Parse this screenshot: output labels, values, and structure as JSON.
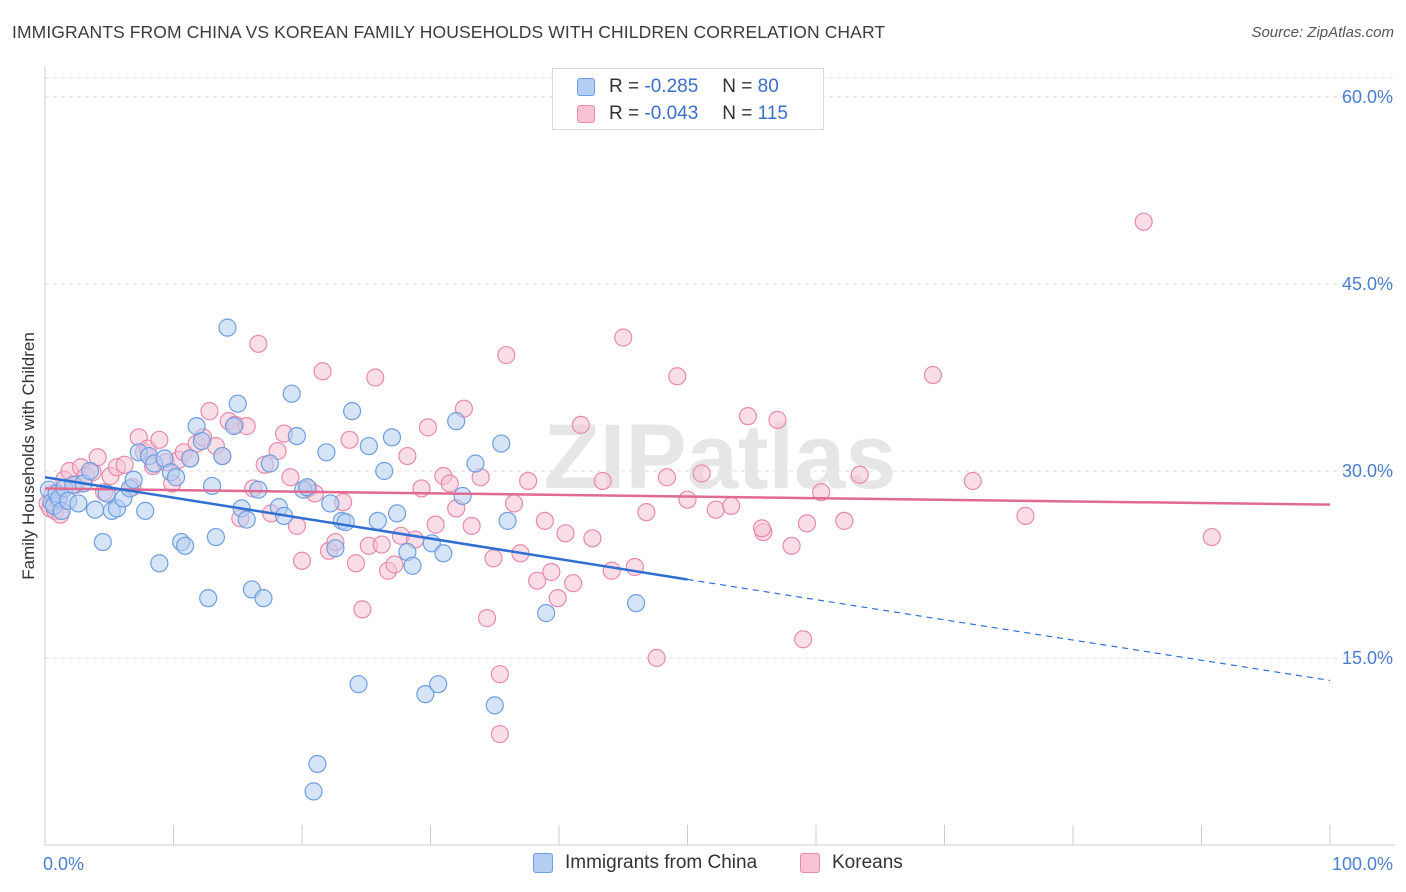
{
  "title": "IMMIGRANTS FROM CHINA VS KOREAN FAMILY HOUSEHOLDS WITH CHILDREN CORRELATION CHART",
  "source": "Source: ZipAtlas.com",
  "watermark": "ZIPatlas",
  "colors": {
    "china_fill": "#b4cdf2",
    "china_stroke": "#6f9ee0",
    "china_line": "#2f6fd1",
    "korea_fill": "#f6c2d4",
    "korea_stroke": "#e88aab",
    "korea_line": "#e06a94",
    "tick_text": "#4a7fd0",
    "grid": "#dddddd"
  },
  "legend": {
    "rows": [
      {
        "r_label": "R =",
        "r_value": "-0.285",
        "n_label": "N =",
        "n_value": "80"
      },
      {
        "r_label": "R =",
        "r_value": "-0.043",
        "n_label": "N =",
        "n_value": "115"
      }
    ]
  },
  "bottom_legend": [
    "Immigrants from China",
    "Koreans"
  ],
  "chart_data": {
    "type": "scatter",
    "title": "IMMIGRANTS FROM CHINA VS KOREAN FAMILY HOUSEHOLDS WITH CHILDREN CORRELATION CHART",
    "xlabel": "",
    "ylabel": "Family Households with Children",
    "xlim": [
      0,
      100
    ],
    "ylim": [
      0,
      60
    ],
    "x_tick_labels": [
      "0.0%",
      "100.0%"
    ],
    "y_ticks": [
      15,
      30,
      45,
      60
    ],
    "y_tick_labels": [
      "15.0%",
      "30.0%",
      "45.0%",
      "60.0%"
    ],
    "grid": "horizontal dashed",
    "legend_position": "top-center",
    "series": [
      {
        "name": "Immigrants from China",
        "r": -0.285,
        "n": 80,
        "trend": {
          "x0": 0,
          "y0": 29.5,
          "x1": 50,
          "y1": 21.3,
          "dashed_to_x": 100,
          "dashed_to_y": 13.2
        },
        "points": [
          [
            0.3,
            28.5
          ],
          [
            0.5,
            27.5
          ],
          [
            0.7,
            27.2
          ],
          [
            0.9,
            28.2
          ],
          [
            1.1,
            27.8
          ],
          [
            1.3,
            26.8
          ],
          [
            1.5,
            28.6
          ],
          [
            1.8,
            27.6
          ],
          [
            2.2,
            28.9
          ],
          [
            2.6,
            27.4
          ],
          [
            3.0,
            29.0
          ],
          [
            3.5,
            30.0
          ],
          [
            3.9,
            26.9
          ],
          [
            4.5,
            24.3
          ],
          [
            4.8,
            28.2
          ],
          [
            5.2,
            26.8
          ],
          [
            5.6,
            27.0
          ],
          [
            6.1,
            27.8
          ],
          [
            6.6,
            28.6
          ],
          [
            6.9,
            29.3
          ],
          [
            7.3,
            31.5
          ],
          [
            7.8,
            26.8
          ],
          [
            8.1,
            31.2
          ],
          [
            8.5,
            30.6
          ],
          [
            8.9,
            22.6
          ],
          [
            9.3,
            31.0
          ],
          [
            9.8,
            29.9
          ],
          [
            10.2,
            29.5
          ],
          [
            10.6,
            24.3
          ],
          [
            10.9,
            24.0
          ],
          [
            11.3,
            31.0
          ],
          [
            11.8,
            33.6
          ],
          [
            12.2,
            32.4
          ],
          [
            12.7,
            19.8
          ],
          [
            13.0,
            28.8
          ],
          [
            13.3,
            24.7
          ],
          [
            13.8,
            31.2
          ],
          [
            14.2,
            41.5
          ],
          [
            14.7,
            33.6
          ],
          [
            15.0,
            35.4
          ],
          [
            15.3,
            27.0
          ],
          [
            15.7,
            26.1
          ],
          [
            16.1,
            20.5
          ],
          [
            16.6,
            28.5
          ],
          [
            17.0,
            19.8
          ],
          [
            17.5,
            30.6
          ],
          [
            18.2,
            27.1
          ],
          [
            18.6,
            26.4
          ],
          [
            19.2,
            36.2
          ],
          [
            19.6,
            32.8
          ],
          [
            20.1,
            28.5
          ],
          [
            20.4,
            28.7
          ],
          [
            20.9,
            4.3
          ],
          [
            21.2,
            6.5
          ],
          [
            21.9,
            31.5
          ],
          [
            22.2,
            27.4
          ],
          [
            22.6,
            23.8
          ],
          [
            23.1,
            26.0
          ],
          [
            23.4,
            25.9
          ],
          [
            23.9,
            34.8
          ],
          [
            24.4,
            12.9
          ],
          [
            25.2,
            32.0
          ],
          [
            25.9,
            26.0
          ],
          [
            26.4,
            30.0
          ],
          [
            27.0,
            32.7
          ],
          [
            27.4,
            26.6
          ],
          [
            28.2,
            23.5
          ],
          [
            28.6,
            22.4
          ],
          [
            29.6,
            12.1
          ],
          [
            30.1,
            24.2
          ],
          [
            30.6,
            12.9
          ],
          [
            31.0,
            23.4
          ],
          [
            32.0,
            34.0
          ],
          [
            32.5,
            28.0
          ],
          [
            33.5,
            30.6
          ],
          [
            35.0,
            11.2
          ],
          [
            35.5,
            32.2
          ],
          [
            36.0,
            26.0
          ],
          [
            39.0,
            18.6
          ],
          [
            46.0,
            19.4
          ]
        ]
      },
      {
        "name": "Koreans",
        "r": -0.043,
        "n": 115,
        "trend": {
          "x0": 0,
          "y0": 28.6,
          "x1": 100,
          "y1": 27.3
        },
        "points": [
          [
            0.2,
            27.4
          ],
          [
            0.4,
            27.0
          ],
          [
            0.6,
            28.2
          ],
          [
            0.8,
            26.8
          ],
          [
            1.0,
            27.6
          ],
          [
            1.2,
            26.5
          ],
          [
            1.5,
            29.3
          ],
          [
            1.9,
            30.0
          ],
          [
            2.4,
            28.9
          ],
          [
            2.8,
            30.3
          ],
          [
            3.2,
            29.6
          ],
          [
            3.7,
            29.9
          ],
          [
            4.1,
            31.1
          ],
          [
            4.6,
            28.3
          ],
          [
            5.1,
            29.6
          ],
          [
            5.6,
            30.3
          ],
          [
            6.2,
            30.5
          ],
          [
            6.8,
            28.7
          ],
          [
            7.3,
            32.7
          ],
          [
            7.7,
            31.5
          ],
          [
            8.0,
            31.8
          ],
          [
            8.4,
            30.4
          ],
          [
            8.9,
            32.5
          ],
          [
            9.4,
            30.7
          ],
          [
            9.9,
            29.0
          ],
          [
            10.4,
            30.9
          ],
          [
            10.8,
            31.5
          ],
          [
            11.3,
            31.0
          ],
          [
            11.8,
            32.2
          ],
          [
            12.3,
            32.7
          ],
          [
            12.8,
            34.8
          ],
          [
            13.3,
            32.0
          ],
          [
            13.8,
            31.2
          ],
          [
            14.3,
            34.0
          ],
          [
            14.8,
            33.7
          ],
          [
            15.2,
            26.2
          ],
          [
            15.7,
            33.6
          ],
          [
            16.2,
            28.6
          ],
          [
            16.6,
            40.2
          ],
          [
            17.1,
            30.5
          ],
          [
            17.6,
            26.6
          ],
          [
            18.1,
            31.6
          ],
          [
            18.6,
            33.0
          ],
          [
            19.1,
            29.5
          ],
          [
            19.6,
            25.6
          ],
          [
            20.0,
            22.8
          ],
          [
            20.5,
            28.6
          ],
          [
            21.0,
            28.2
          ],
          [
            21.6,
            38.0
          ],
          [
            22.1,
            23.6
          ],
          [
            22.6,
            24.3
          ],
          [
            23.2,
            27.5
          ],
          [
            23.7,
            32.5
          ],
          [
            24.2,
            22.6
          ],
          [
            24.7,
            18.9
          ],
          [
            25.2,
            24.0
          ],
          [
            25.7,
            37.5
          ],
          [
            26.2,
            24.1
          ],
          [
            26.7,
            22.0
          ],
          [
            27.2,
            22.5
          ],
          [
            27.7,
            24.8
          ],
          [
            28.2,
            31.2
          ],
          [
            28.8,
            24.5
          ],
          [
            29.3,
            28.6
          ],
          [
            29.8,
            33.5
          ],
          [
            30.4,
            25.7
          ],
          [
            31.0,
            29.6
          ],
          [
            31.5,
            29.0
          ],
          [
            32.0,
            27.0
          ],
          [
            32.6,
            35.0
          ],
          [
            33.2,
            25.6
          ],
          [
            33.9,
            29.5
          ],
          [
            34.4,
            18.2
          ],
          [
            34.9,
            23.0
          ],
          [
            35.4,
            13.7
          ],
          [
            35.9,
            39.3
          ],
          [
            36.5,
            27.4
          ],
          [
            37.0,
            23.4
          ],
          [
            37.6,
            29.2
          ],
          [
            38.3,
            21.2
          ],
          [
            38.9,
            26.0
          ],
          [
            39.4,
            21.9
          ],
          [
            39.9,
            19.8
          ],
          [
            40.5,
            25.0
          ],
          [
            41.1,
            21.0
          ],
          [
            41.7,
            33.7
          ],
          [
            42.6,
            24.6
          ],
          [
            43.4,
            29.2
          ],
          [
            44.1,
            22.0
          ],
          [
            45.0,
            40.7
          ],
          [
            45.9,
            22.3
          ],
          [
            46.8,
            26.7
          ],
          [
            47.6,
            15.0
          ],
          [
            48.4,
            29.5
          ],
          [
            49.2,
            37.6
          ],
          [
            50.0,
            27.7
          ],
          [
            51.1,
            29.8
          ],
          [
            52.2,
            26.9
          ],
          [
            53.4,
            27.2
          ],
          [
            54.7,
            34.4
          ],
          [
            55.9,
            25.1
          ],
          [
            57.0,
            34.1
          ],
          [
            58.1,
            24.0
          ],
          [
            59.3,
            25.8
          ],
          [
            60.4,
            28.3
          ],
          [
            62.2,
            26.0
          ],
          [
            59.0,
            16.5
          ],
          [
            63.4,
            29.7
          ],
          [
            69.1,
            37.7
          ],
          [
            72.2,
            29.2
          ],
          [
            76.3,
            26.4
          ],
          [
            85.5,
            50.0
          ],
          [
            90.8,
            24.7
          ],
          [
            35.4,
            8.9
          ],
          [
            55.8,
            25.4
          ]
        ]
      }
    ]
  }
}
